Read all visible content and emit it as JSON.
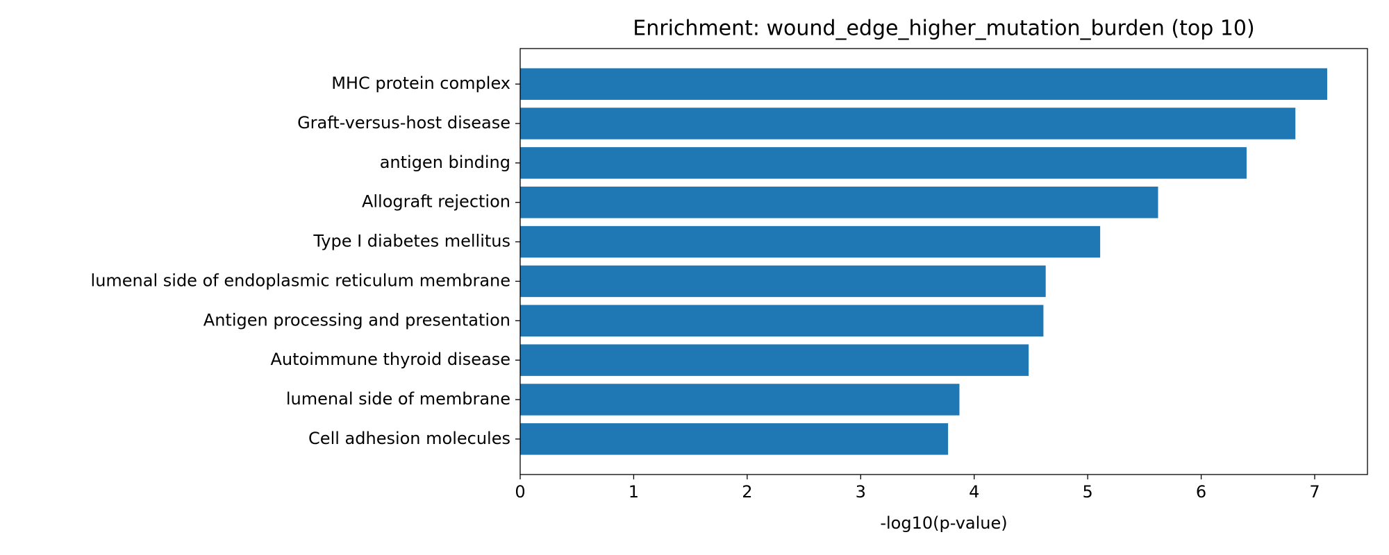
{
  "chart_data": {
    "type": "barh",
    "title": "Enrichment: wound_edge_higher_mutation_burden (top 10)",
    "xlabel": "-log10(p-value)",
    "categories": [
      "MHC protein complex",
      "Graft-versus-host disease",
      "antigen binding",
      "Allograft rejection",
      "Type I diabetes mellitus",
      "lumenal side of endoplasmic reticulum membrane",
      "Antigen processing and presentation",
      "Autoimmune thyroid disease",
      "lumenal side of membrane",
      "Cell adhesion molecules"
    ],
    "values": [
      7.11,
      6.83,
      6.4,
      5.62,
      5.11,
      4.63,
      4.61,
      4.48,
      3.87,
      3.77
    ],
    "color": "#1f77b4",
    "xlim": [
      0,
      7.465
    ],
    "xticks": [
      0,
      1,
      2,
      3,
      4,
      5,
      6,
      7
    ],
    "grid": false
  }
}
